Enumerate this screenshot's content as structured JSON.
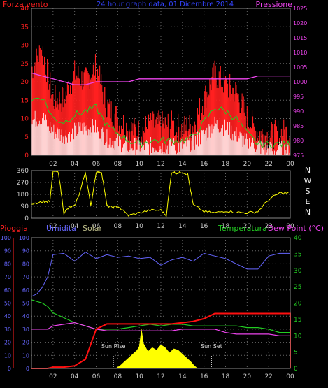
{
  "header": {
    "left_title": "Forza vento",
    "center_title": "24 hour graph data, 01 Dicembre 2014",
    "right_title": "Pressione"
  },
  "bottom_header": {
    "pioggia": "Pioggia",
    "umidita": "Umidita",
    "solar": "Solar",
    "temperatura": "Temperatura",
    "dew_point": "Dew Point (°C)"
  },
  "direction_labels": [
    "N",
    "W",
    "S",
    "E",
    "N"
  ],
  "colors": {
    "wind_gust": "#ff2020",
    "wind_avg": "#22cc22",
    "wind_speed": "#ffffff",
    "pressure": "#ee44ee",
    "direction": "#ffff00",
    "rain": "#ff1010",
    "humidity": "#6666ff",
    "solar": "#ffff00",
    "temperature": "#22cc22",
    "dew_point": "#ee44ee",
    "axis_red": "#ff2020",
    "axis_magenta": "#ee44ee",
    "axis_green": "#22cc22",
    "axis_blue": "#6666ff",
    "grid": "#666666"
  },
  "chart_data": [
    {
      "type": "line",
      "x_ticks": [
        "02",
        "04",
        "06",
        "08",
        "10",
        "12",
        "14",
        "16",
        "18",
        "20",
        "22",
        "00"
      ],
      "left_axis": {
        "title": "Forza vento",
        "ylim": [
          0,
          40
        ],
        "ticks": [
          0,
          5,
          10,
          15,
          20,
          25,
          30,
          35,
          40
        ]
      },
      "right_axis": {
        "title": "Pressione",
        "ylim": [
          975,
          1025
        ],
        "ticks": [
          975,
          980,
          985,
          990,
          995,
          1000,
          1005,
          1010,
          1015,
          1020,
          1025
        ]
      },
      "x_hours": [
        0,
        1,
        2,
        3,
        4,
        5,
        6,
        7,
        8,
        9,
        10,
        11,
        12,
        13,
        14,
        15,
        16,
        17,
        18,
        19,
        20,
        21,
        22,
        23,
        24
      ],
      "series": [
        {
          "name": "Forza vento",
          "axis": "left",
          "values": [
            22,
            28,
            14,
            14,
            21,
            19,
            23,
            12,
            9,
            6,
            5,
            7,
            7,
            7,
            6,
            7,
            14,
            21,
            18,
            16,
            9,
            5,
            4,
            5,
            5
          ]
        },
        {
          "name": "",
          "axis": "left",
          "values": [
            15,
            16,
            10,
            9,
            11,
            12,
            13,
            8,
            6,
            4,
            3,
            4,
            4,
            4,
            4,
            5,
            9,
            13,
            12,
            10,
            6,
            3,
            3,
            3,
            3
          ]
        },
        {
          "name": "",
          "axis": "left",
          "values": [
            9,
            10,
            6,
            5,
            6,
            7,
            7,
            4,
            3,
            2,
            2,
            2,
            2,
            2,
            2,
            3,
            5,
            8,
            7,
            5,
            3,
            2,
            1,
            1,
            1
          ]
        },
        {
          "name": "Pressione",
          "axis": "right",
          "values": [
            1003,
            1002,
            1001,
            1000,
            999,
            999,
            1000,
            1000,
            1000,
            1000,
            1001,
            1001,
            1001,
            1001,
            1001,
            1001,
            1001,
            1001,
            1001,
            1001,
            1001,
            1002,
            1002,
            1002,
            1002
          ]
        }
      ]
    },
    {
      "type": "line",
      "x_ticks": [
        "02",
        "04",
        "06",
        "08",
        "10",
        "12",
        "14",
        "16",
        "18",
        "20",
        "22",
        "00"
      ],
      "y_ticks": [
        0,
        90,
        180,
        270,
        360
      ],
      "ylim": [
        0,
        360
      ],
      "x_hours": [
        0,
        1,
        1.7,
        2,
        2.5,
        3,
        3.5,
        4,
        4.5,
        5,
        5.5,
        6,
        6.5,
        7,
        7.5,
        8,
        9,
        10,
        11,
        12,
        12.5,
        13,
        13.5,
        14,
        14.5,
        15,
        16,
        17,
        18,
        19,
        20,
        21,
        22,
        23,
        24
      ],
      "series": [
        {
          "name": "",
          "values": [
            110,
            125,
            125,
            350,
            350,
            40,
            80,
            90,
            200,
            350,
            90,
            350,
            350,
            95,
            80,
            90,
            20,
            40,
            60,
            60,
            20,
            350,
            340,
            350,
            330,
            100,
            50,
            40,
            55,
            45,
            40,
            50,
            140,
            190,
            190
          ]
        }
      ]
    },
    {
      "type": "line",
      "x_ticks": [
        "02",
        "04",
        "06",
        "08",
        "10",
        "12",
        "14",
        "16",
        "18",
        "20",
        "22",
        "00"
      ],
      "left_axes": [
        {
          "title": "Pioggia",
          "ylim": [
            0,
            100
          ],
          "ticks": [
            0,
            10,
            20,
            30,
            40,
            50,
            60,
            70,
            80,
            90,
            100
          ]
        },
        {
          "title": "Umidita",
          "ylim": [
            0,
            100
          ],
          "ticks": [
            0,
            10,
            20,
            30,
            40,
            50,
            60,
            70,
            80,
            90,
            100
          ]
        }
      ],
      "right_axis": {
        "title": "Dew Point (°C)",
        "ylim": [
          0,
          40
        ],
        "ticks": [
          0,
          5,
          10,
          15,
          20,
          25,
          30,
          35,
          40
        ]
      },
      "annotations": [
        "Sun Rise",
        "Sun Set"
      ],
      "x_hours": [
        0,
        0.5,
        1,
        1.5,
        2,
        3,
        4,
        5,
        6,
        7,
        8,
        9,
        10,
        11,
        12,
        13,
        14,
        15,
        16,
        17,
        18,
        19,
        20,
        21,
        22,
        23,
        24
      ],
      "series": [
        {
          "name": "Umidita",
          "axis": "left",
          "values": [
            55,
            57,
            62,
            70,
            87,
            88,
            82,
            89,
            84,
            87,
            85,
            86,
            84,
            85,
            79,
            83,
            85,
            82,
            88,
            86,
            84,
            80,
            76,
            76,
            86,
            88,
            88
          ]
        },
        {
          "name": "Pioggia",
          "axis": "left",
          "values": [
            0,
            0,
            0,
            0,
            1,
            1,
            2,
            7,
            30,
            34,
            34,
            34,
            34,
            34,
            34,
            34,
            35,
            36,
            38,
            42,
            42,
            42,
            42,
            42,
            42,
            42,
            42
          ]
        },
        {
          "name": "Temperatura",
          "axis": "right",
          "values": [
            21,
            20.5,
            20,
            19,
            17,
            15.5,
            14,
            13,
            12,
            12,
            12,
            12.5,
            13,
            13.5,
            13,
            13.5,
            13.5,
            13,
            13,
            13,
            13,
            13,
            12.5,
            12.5,
            12,
            11,
            11
          ]
        },
        {
          "name": "Dew Point (°C)",
          "axis": "right",
          "values": [
            12,
            12,
            12,
            12,
            13,
            13.5,
            14,
            13,
            12,
            11.5,
            11.5,
            11.5,
            11.5,
            11.5,
            11.5,
            11.5,
            12,
            12,
            12,
            12,
            11,
            10.5,
            10.5,
            10.5,
            10.5,
            10,
            10
          ]
        },
        {
          "name": "Solar",
          "axis": "left_scaled",
          "x_hours": [
            7.8,
            8.2,
            8.6,
            9,
            9.4,
            9.8,
            10,
            10.2,
            10.4,
            10.8,
            11.2,
            11.6,
            12,
            12.4,
            12.8,
            13.2,
            13.6,
            14,
            14.4,
            14.8,
            15,
            15.4
          ],
          "values": [
            0,
            2,
            5,
            8,
            11,
            14,
            17,
            30,
            19,
            13,
            16,
            14,
            18,
            16,
            12,
            15,
            14,
            11,
            8,
            5,
            3,
            0
          ]
        }
      ]
    }
  ]
}
